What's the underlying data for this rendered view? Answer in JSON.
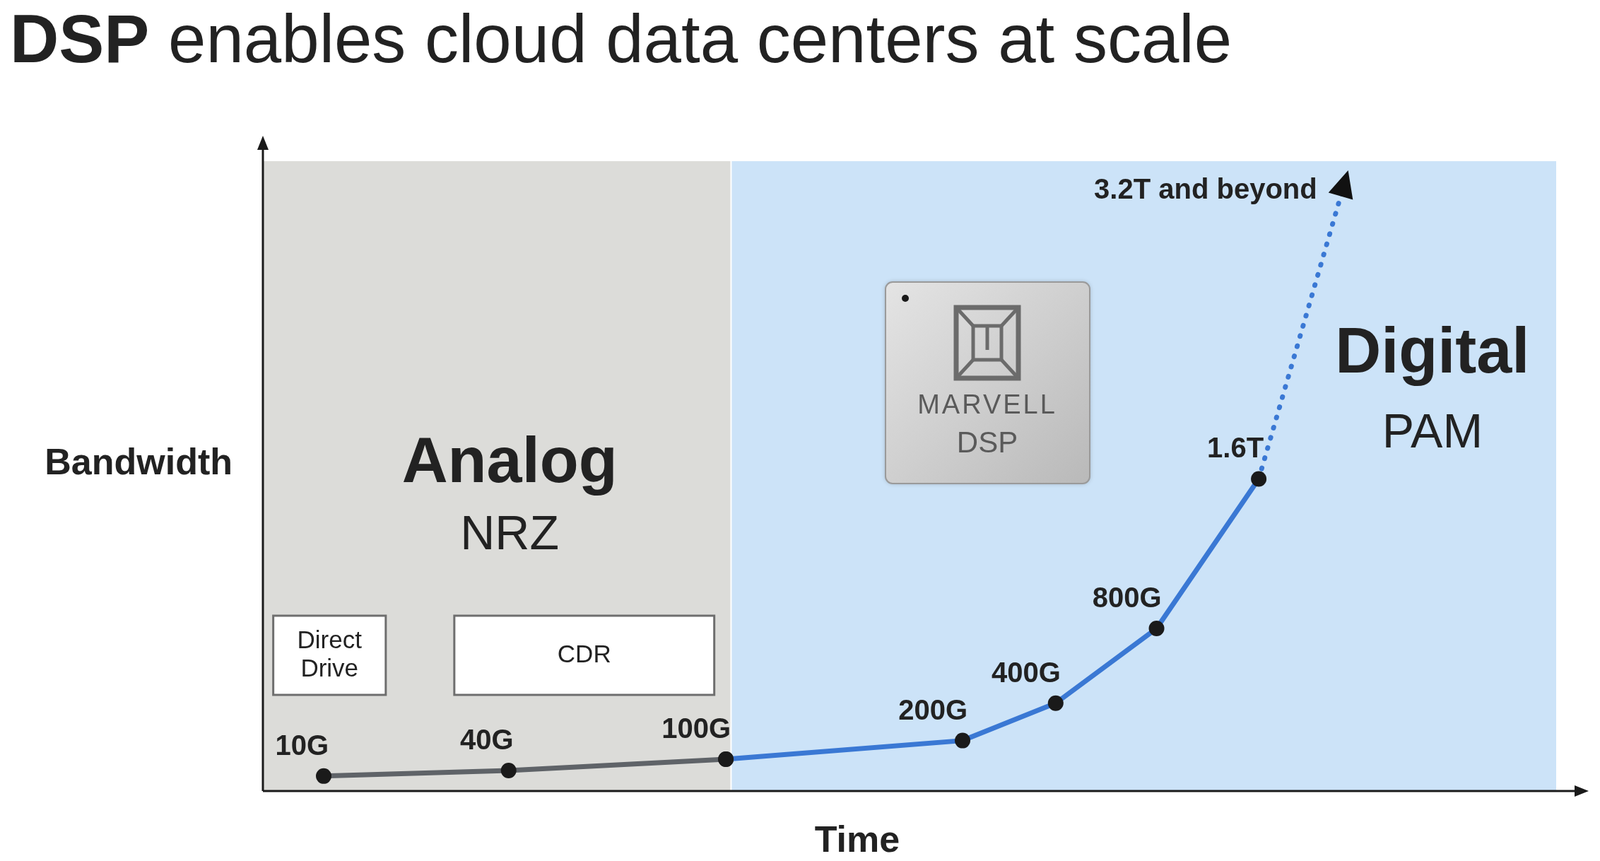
{
  "chart_data": {
    "type": "line",
    "title": "DSP enables cloud data centers at scale",
    "x_label": "Time",
    "y_label": "Bandwidth",
    "x": [
      4.7,
      19.0,
      35.8,
      54.1,
      61.3,
      69.1,
      77.0,
      83.7
    ],
    "xlim": [
      0,
      100
    ],
    "ylim": [
      -70,
      3300
    ],
    "tick_labels": false,
    "grid": false,
    "data_labels": true,
    "series": [
      {
        "color": "#5f6368",
        "marker": "circle",
        "line_style": "solid",
        "values": [
          10,
          40,
          100,
          null,
          null,
          null,
          null,
          null
        ],
        "value_labels": [
          "10G",
          "40G",
          "100G",
          null,
          null,
          null,
          null,
          null
        ]
      },
      {
        "color": "#3a78d4",
        "marker": "circle",
        "line_style": "solid",
        "values": [
          null,
          null,
          100,
          200,
          400,
          800,
          1600,
          null
        ],
        "value_labels": [
          null,
          null,
          null,
          "200G",
          "400G",
          "800G",
          "1.6T",
          null
        ]
      },
      {
        "color": "#3a78d4",
        "marker": "arrow",
        "line_style": "dotted",
        "values": [
          null,
          null,
          null,
          null,
          null,
          null,
          1600,
          3200
        ],
        "value_labels": [
          null,
          null,
          null,
          null,
          null,
          null,
          null,
          "3.2T and beyond"
        ]
      }
    ],
    "regions": [
      {
        "label": "Analog",
        "sublabel": "NRZ",
        "xlim": [
          0,
          36.2
        ],
        "color": "#dcdcd9"
      },
      {
        "label": "Digital",
        "sublabel": "PAM",
        "xlim": [
          36.2,
          100
        ],
        "color": "#cce3f8"
      }
    ],
    "boxes": [
      {
        "label": "Direct Drive",
        "xlim": [
          0.8,
          9.5
        ]
      },
      {
        "label": "CDR",
        "xlim": [
          14.8,
          34.9
        ]
      }
    ],
    "chip": {
      "brand": "MARVELL",
      "label": "DSP"
    }
  }
}
